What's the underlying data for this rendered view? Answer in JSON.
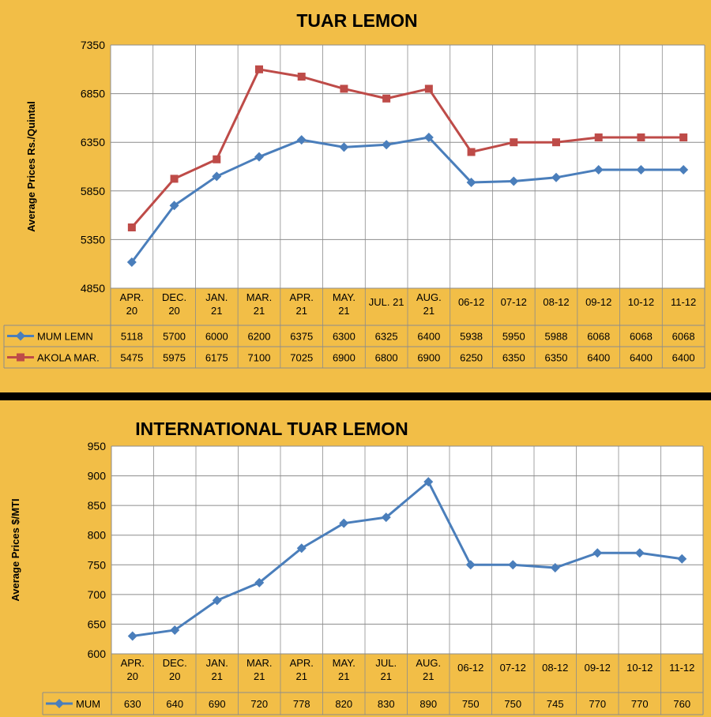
{
  "chart_data": [
    {
      "type": "line",
      "title": "TUAR LEMON",
      "ylabel": "Average Prices  Rs./Quintal",
      "ylim": [
        4850,
        7350
      ],
      "yticks": [
        "4850",
        "5350",
        "5850",
        "6350",
        "6850",
        "7350"
      ],
      "categories": [
        [
          "APR.",
          "20"
        ],
        [
          "DEC.",
          "20"
        ],
        [
          "JAN.",
          "21"
        ],
        [
          "MAR.",
          "21"
        ],
        [
          "APR.",
          "21"
        ],
        [
          "MAY.",
          "21"
        ],
        [
          "JUL. 21"
        ],
        [
          "AUG.",
          "21"
        ],
        [
          "06-12"
        ],
        [
          "07-12"
        ],
        [
          "08-12"
        ],
        [
          "09-12"
        ],
        [
          "10-12"
        ],
        [
          "11-12"
        ]
      ],
      "grid": true,
      "legend": "data-table",
      "series": [
        {
          "name": "MUM LEMN",
          "color": "#4A7EBB",
          "marker": "diamond",
          "values": [
            5118,
            5700,
            6000,
            6200,
            6375,
            6300,
            6325,
            6400,
            5938,
            5950,
            5988,
            6068,
            6068,
            6068
          ]
        },
        {
          "name": "AKOLA MAR.",
          "color": "#BE4B48",
          "marker": "square",
          "values": [
            5475,
            5975,
            6175,
            7100,
            7025,
            6900,
            6800,
            6900,
            6250,
            6350,
            6350,
            6400,
            6400,
            6400
          ]
        }
      ]
    },
    {
      "type": "line",
      "title": "INTERNATIONAL TUAR LEMON",
      "ylabel": "Average Prices  $/MTI",
      "ylim": [
        600,
        950
      ],
      "yticks": [
        "600",
        "650",
        "700",
        "750",
        "800",
        "850",
        "900",
        "950"
      ],
      "categories": [
        [
          "APR.",
          "20"
        ],
        [
          "DEC.",
          "20"
        ],
        [
          "JAN.",
          "21"
        ],
        [
          "MAR.",
          "21"
        ],
        [
          "APR.",
          "21"
        ],
        [
          "MAY.",
          "21"
        ],
        [
          "JUL.",
          "21"
        ],
        [
          "AUG.",
          "21"
        ],
        [
          "06-12"
        ],
        [
          "07-12"
        ],
        [
          "08-12"
        ],
        [
          "09-12"
        ],
        [
          "10-12"
        ],
        [
          "11-12"
        ]
      ],
      "grid": true,
      "legend": "data-table",
      "series": [
        {
          "name": "MUM",
          "color": "#4A7EBB",
          "marker": "diamond",
          "values": [
            630,
            640,
            690,
            720,
            778,
            820,
            830,
            890,
            750,
            750,
            745,
            770,
            770,
            760
          ]
        }
      ]
    }
  ]
}
